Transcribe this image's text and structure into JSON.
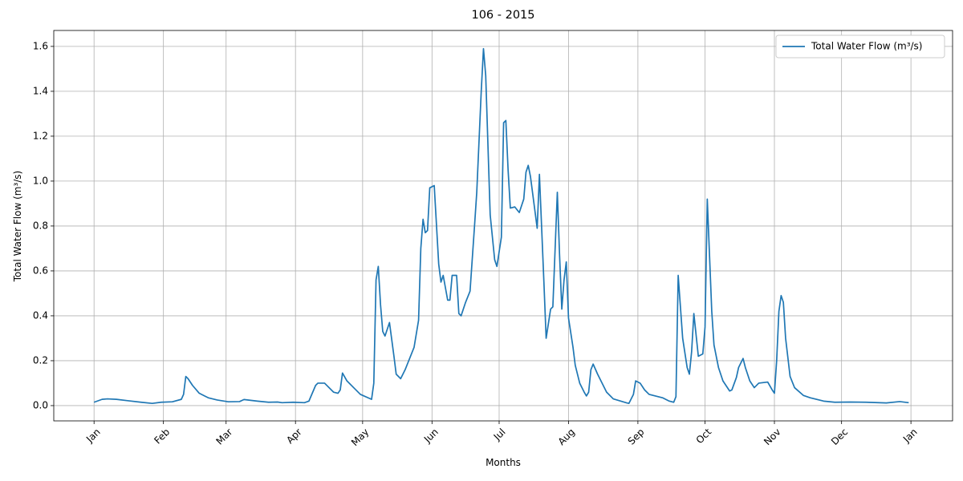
{
  "chart_data": {
    "type": "line",
    "title": "106 - 2015",
    "xlabel": "Months",
    "ylabel": "Total Water Flow (m³/s)",
    "xlim": [
      -18,
      383.6
    ],
    "ylim": [
      -0.068,
      1.671
    ],
    "xticks": [
      {
        "value": 0,
        "label": "Jan"
      },
      {
        "value": 31,
        "label": "Feb"
      },
      {
        "value": 59,
        "label": "Mar"
      },
      {
        "value": 90,
        "label": "Apr"
      },
      {
        "value": 120,
        "label": "May"
      },
      {
        "value": 151,
        "label": "Jun"
      },
      {
        "value": 181,
        "label": "Jul"
      },
      {
        "value": 212,
        "label": "Aug"
      },
      {
        "value": 243,
        "label": "Sep"
      },
      {
        "value": 273,
        "label": "Oct"
      },
      {
        "value": 304,
        "label": "Nov"
      },
      {
        "value": 334,
        "label": "Dec"
      },
      {
        "value": 365,
        "label": "Jan"
      }
    ],
    "yticks": [
      {
        "value": 0,
        "label": "0.0"
      },
      0.2,
      0.4,
      0.6,
      0.8,
      {
        "value": 1,
        "label": "1.0"
      },
      1.2,
      1.4,
      1.6
    ],
    "grid": true,
    "legend": "upper right",
    "x": [
      0,
      3.6,
      6,
      10,
      15,
      21,
      26,
      30,
      35,
      39,
      40,
      41,
      42,
      44,
      47,
      51,
      55,
      60,
      65,
      67,
      73,
      78,
      82,
      84,
      89,
      94,
      96,
      99,
      100,
      103,
      107,
      109,
      110,
      111,
      113,
      116,
      119,
      124,
      125,
      126,
      127,
      128,
      129,
      130,
      132,
      134,
      135,
      137,
      139,
      141,
      143,
      145,
      146,
      147,
      148,
      149,
      150,
      152,
      154,
      155,
      156,
      158,
      159,
      160,
      162,
      163,
      164,
      166,
      168,
      170,
      171,
      173,
      174,
      175,
      177,
      179,
      180,
      182,
      183,
      184,
      185,
      186,
      188,
      190,
      192,
      193,
      194,
      195,
      198,
      199,
      201,
      202,
      204,
      205,
      207,
      208,
      209,
      210,
      211,
      212,
      214,
      215,
      217,
      219,
      220,
      221,
      222,
      223,
      225,
      229,
      232,
      238,
      239,
      241,
      242,
      244,
      246,
      248,
      254,
      257,
      259,
      260,
      261,
      263,
      265,
      266,
      267,
      268,
      270,
      272,
      273,
      274,
      276,
      277,
      279,
      281,
      284,
      285,
      287,
      288,
      290,
      291,
      293,
      295,
      297,
      301,
      303,
      304,
      305,
      306,
      307,
      308,
      309,
      311,
      313,
      317,
      320,
      326,
      331,
      338,
      345,
      354,
      360,
      364
    ],
    "series": [
      {
        "name": "Total Water Flow (m³/s)",
        "color": "#1f77b4",
        "values": [
          0.015,
          0.028,
          0.03,
          0.028,
          0.022,
          0.015,
          0.01,
          0.015,
          0.017,
          0.028,
          0.05,
          0.13,
          0.12,
          0.09,
          0.055,
          0.035,
          0.025,
          0.017,
          0.018,
          0.027,
          0.02,
          0.015,
          0.016,
          0.013,
          0.015,
          0.013,
          0.02,
          0.09,
          0.1,
          0.1,
          0.06,
          0.055,
          0.07,
          0.145,
          0.11,
          0.08,
          0.05,
          0.028,
          0.1,
          0.56,
          0.62,
          0.45,
          0.33,
          0.31,
          0.37,
          0.22,
          0.14,
          0.12,
          0.16,
          0.21,
          0.26,
          0.38,
          0.7,
          0.83,
          0.77,
          0.78,
          0.97,
          0.98,
          0.63,
          0.55,
          0.58,
          0.47,
          0.47,
          0.58,
          0.58,
          0.41,
          0.4,
          0.46,
          0.51,
          0.8,
          0.95,
          1.4,
          1.59,
          1.47,
          0.85,
          0.65,
          0.62,
          0.75,
          1.26,
          1.27,
          1.05,
          0.88,
          0.885,
          0.86,
          0.92,
          1.04,
          1.07,
          1.02,
          0.79,
          1.03,
          0.55,
          0.3,
          0.43,
          0.44,
          0.95,
          0.67,
          0.43,
          0.56,
          0.64,
          0.39,
          0.26,
          0.18,
          0.1,
          0.06,
          0.043,
          0.06,
          0.16,
          0.185,
          0.14,
          0.06,
          0.03,
          0.012,
          0.01,
          0.05,
          0.11,
          0.1,
          0.07,
          0.05,
          0.035,
          0.02,
          0.015,
          0.04,
          0.58,
          0.3,
          0.17,
          0.14,
          0.24,
          0.41,
          0.22,
          0.23,
          0.35,
          0.92,
          0.42,
          0.27,
          0.17,
          0.11,
          0.065,
          0.07,
          0.125,
          0.17,
          0.21,
          0.17,
          0.11,
          0.08,
          0.1,
          0.105,
          0.07,
          0.055,
          0.2,
          0.42,
          0.49,
          0.46,
          0.3,
          0.13,
          0.08,
          0.045,
          0.035,
          0.02,
          0.015,
          0.016,
          0.015,
          0.012,
          0.018,
          0.013
        ]
      }
    ]
  }
}
